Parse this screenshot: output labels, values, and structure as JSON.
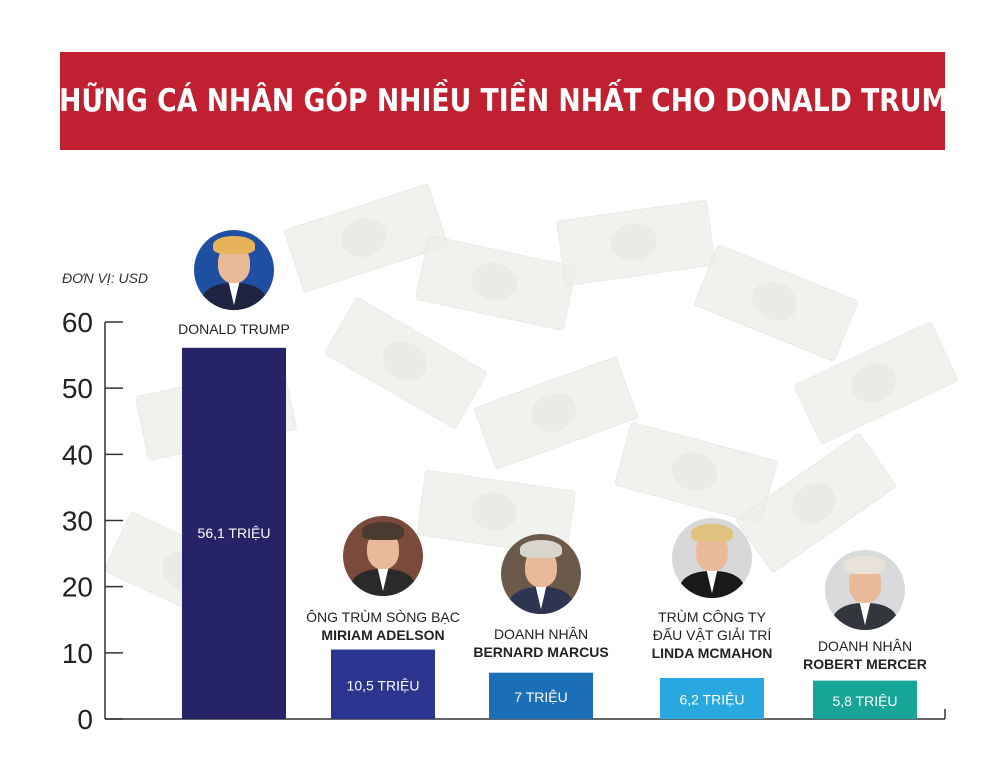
{
  "header": {
    "title": "NHỮNG CÁ NHÂN GÓP NHIỀU TIỀN NHẤT CHO DONALD TRUMP"
  },
  "colors": {
    "banner": "#c0202f",
    "bars": [
      "#262466",
      "#2b3590",
      "#1b6fb7",
      "#29a8e0",
      "#17a597"
    ]
  },
  "chart_data": {
    "type": "bar",
    "unit_label": "ĐƠN VỊ: USD",
    "yticks": [
      "60",
      "50",
      "40",
      "30",
      "20",
      "10",
      "0"
    ],
    "ylim": [
      0,
      60
    ],
    "categories": [
      {
        "role": "",
        "name": "DONALD TRUMP",
        "role_line2": ""
      },
      {
        "role": "ÔNG TRÙM SÒNG BẠC",
        "name": "MIRIAM ADELSON",
        "role_line2": ""
      },
      {
        "role": "DOANH NHÂN",
        "name": "BERNARD MARCUS",
        "role_line2": ""
      },
      {
        "role": "TRÙM CÔNG TY",
        "role_line2": "ĐẤU VẬT GIẢI TRÍ",
        "name": "LINDA MCMAHON"
      },
      {
        "role": "DOANH NHÂN",
        "name": "ROBERT MERCER",
        "role_line2": ""
      }
    ],
    "values": [
      56.1,
      10.5,
      7,
      6.2,
      5.8
    ],
    "value_labels": [
      "56,1 TRIỆU",
      "10,5 TRIỆU",
      "7 TRIỆU",
      "6,2 TRIỆU",
      "5,8 TRIỆU"
    ]
  },
  "avatars": [
    {
      "icon": "donald-trump-portrait",
      "bg": "#1f4fa0",
      "hair": "#e6b25a",
      "suit": "#1d2340"
    },
    {
      "icon": "miriam-adelson-portrait",
      "bg": "#7a4a3a",
      "hair": "#4a3a30",
      "suit": "#2a2a2a"
    },
    {
      "icon": "bernard-marcus-portrait",
      "bg": "#6b5a4a",
      "hair": "#d9d4cc",
      "suit": "#2e3550"
    },
    {
      "icon": "linda-mcmahon-portrait",
      "bg": "#d8d8d8",
      "hair": "#e0c280",
      "suit": "#1a1a1a"
    },
    {
      "icon": "robert-mercer-portrait",
      "bg": "#d9dadb",
      "hair": "#e8e2d8",
      "suit": "#33363d"
    }
  ]
}
